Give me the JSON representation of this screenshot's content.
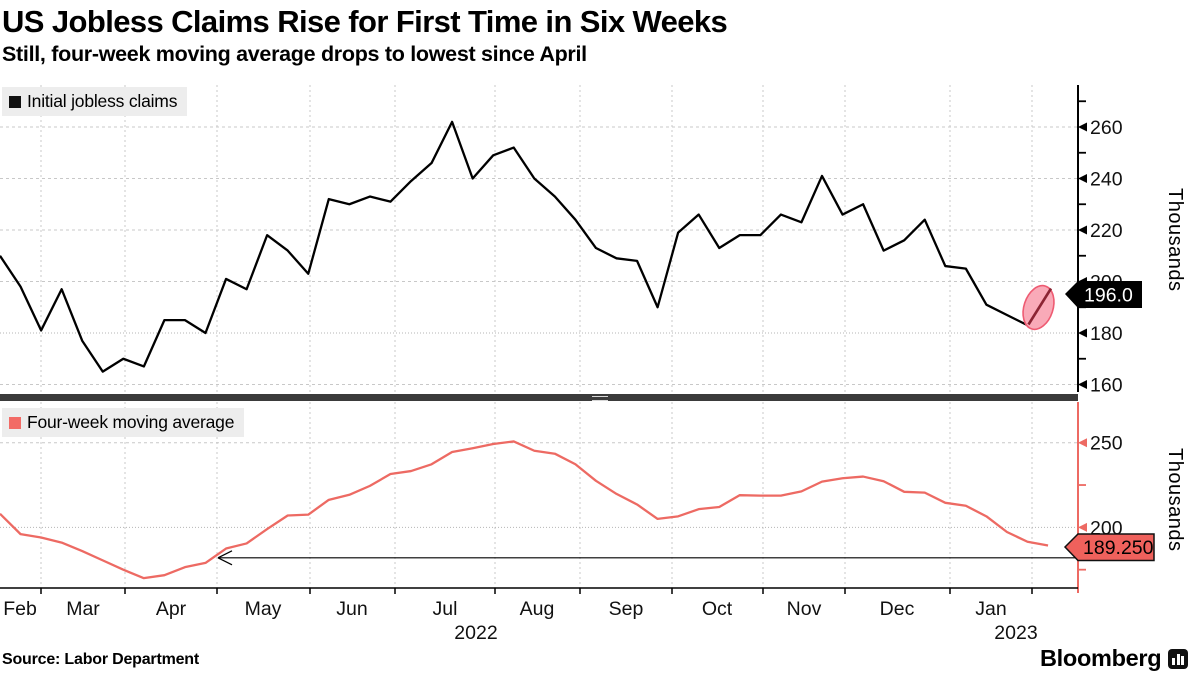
{
  "header": {
    "title": "US Jobless Claims Rise for First Time in Six Weeks",
    "subtitle": "Still, four-week moving average drops to lowest since April"
  },
  "colors": {
    "claims_line": "#000000",
    "average_line": "#ed6a63",
    "average_axis": "#ed6a63",
    "top_tag_bg": "#000000",
    "top_tag_text": "#ffffff",
    "bottom_tag_bg": "#ef615c",
    "bottom_tag_text": "#000000",
    "highlight_ellipse_fill": "#f9aab8",
    "highlight_ellipse_stroke": "#ee5b72",
    "highlight_segment": "#8b2433",
    "legend_bg": "#ededed",
    "grid": "#c8c8c8"
  },
  "chart_data": [
    {
      "type": "line",
      "panel": "top",
      "series_name": "Initial jobless claims",
      "color": "#000000",
      "x_start": "Feb 2022",
      "x_end": "Feb 2023",
      "x_step": "weekly",
      "values": [
        210,
        198,
        181,
        197,
        177,
        165,
        170,
        167,
        185,
        185,
        180,
        201,
        197,
        218,
        212,
        203,
        232,
        230,
        233,
        231,
        239,
        246,
        262,
        240,
        249,
        252,
        240,
        233,
        224,
        213,
        209,
        208,
        190,
        219,
        226,
        213,
        218,
        218,
        226,
        223,
        241,
        226,
        230,
        212,
        216,
        224,
        206,
        205,
        191,
        187,
        183,
        196
      ],
      "ylabel": "Thousands",
      "yticks": [
        260,
        240,
        220,
        200,
        180,
        160
      ],
      "yticks_minor": [
        270,
        250,
        230,
        210,
        190,
        170
      ],
      "ylim": [
        157,
        276
      ],
      "last_value_label": "196.0"
    },
    {
      "type": "line",
      "panel": "bottom",
      "series_name": "Four-week moving average",
      "color": "#ed6a63",
      "x_start": "Feb 2022",
      "x_end": "Feb 2023",
      "x_step": "weekly",
      "values": [
        208,
        196,
        194,
        191,
        186,
        180.5,
        175,
        170,
        171.75,
        176.5,
        179,
        187.5,
        190.5,
        199,
        207,
        207.5,
        216.25,
        219.25,
        224.5,
        231.5,
        233.25,
        237.25,
        244.5,
        246.75,
        249.25,
        250.75,
        245.25,
        243.5,
        237.25,
        227.5,
        219.75,
        213.5,
        205,
        206.5,
        210.75,
        212,
        219,
        218.75,
        218.75,
        221.25,
        227,
        229,
        230,
        227.25,
        221,
        220.5,
        214.5,
        212.75,
        206.5,
        197.25,
        191.5,
        189.25
      ],
      "ylabel": "Thousands",
      "yticks": [
        250,
        200
      ],
      "yticks_minor": [
        225,
        175
      ],
      "ylim": [
        164,
        274
      ],
      "last_value_label": "189.250",
      "arrow_level": 182
    }
  ],
  "x_axis": {
    "months": [
      "Feb",
      "Mar",
      "Apr",
      "May",
      "Jun",
      "Jul",
      "Aug",
      "Sep",
      "Oct",
      "Nov",
      "Dec",
      "Jan"
    ],
    "years": [
      "2022",
      "2023"
    ]
  },
  "footer": {
    "source": "Source: Labor Department",
    "brand": "Bloomberg"
  }
}
